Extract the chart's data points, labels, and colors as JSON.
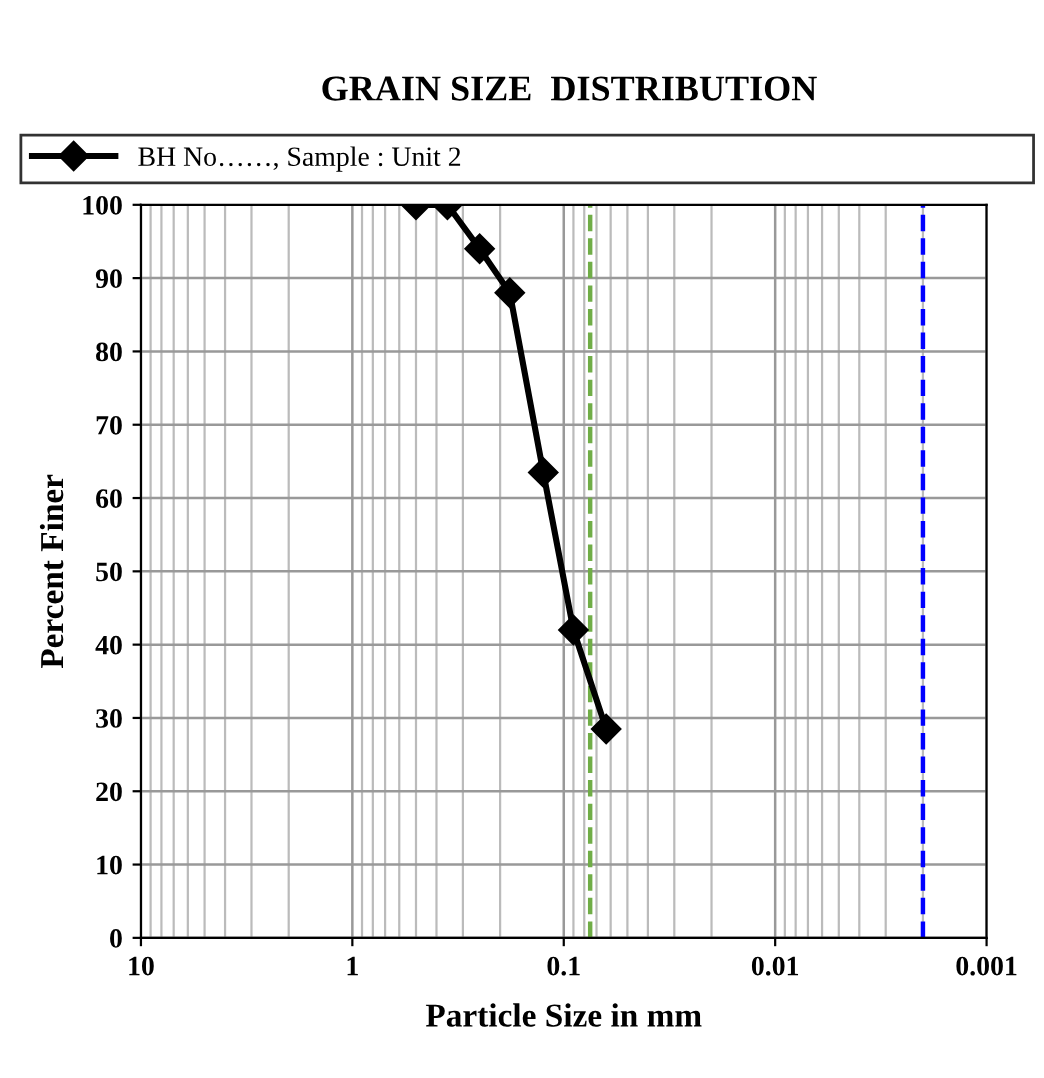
{
  "chart_data": {
    "type": "line",
    "title": "GRAIN SIZE  DISTRIBUTION",
    "xlabel": "Particle Size in mm",
    "ylabel": "Percent Finer",
    "x": [
      0.5,
      0.355,
      0.25,
      0.18,
      0.125,
      0.09,
      0.063
    ],
    "series": [
      {
        "name": "BH No……, Sample : Unit 2",
        "color": "#000000",
        "values": [
          100,
          100,
          94,
          88,
          63.5,
          42,
          28.5
        ]
      }
    ],
    "log": "x",
    "xlim": [
      10,
      0.001
    ],
    "xticks": [
      {
        "value": 10,
        "label": "10"
      },
      {
        "value": 1,
        "label": "1"
      },
      {
        "value": 0.1,
        "label": "0.1"
      },
      {
        "value": 0.01,
        "label": "0.01"
      },
      {
        "value": 0.001,
        "label": "0.001"
      }
    ],
    "ylim": [
      0,
      100
    ],
    "yticks": [
      0,
      10,
      20,
      30,
      40,
      50,
      60,
      70,
      80,
      90,
      100
    ],
    "ref_lines": [
      {
        "axis": "x",
        "value": 0.075,
        "label": null,
        "color": "#70ad47",
        "line_style": "dashed"
      },
      {
        "axis": "x",
        "value": 0.002,
        "label": null,
        "color": "#0000ff",
        "line_style": "dashed"
      }
    ],
    "grid": true,
    "legend": "top",
    "marker": "diamond",
    "line_style": "solid"
  }
}
